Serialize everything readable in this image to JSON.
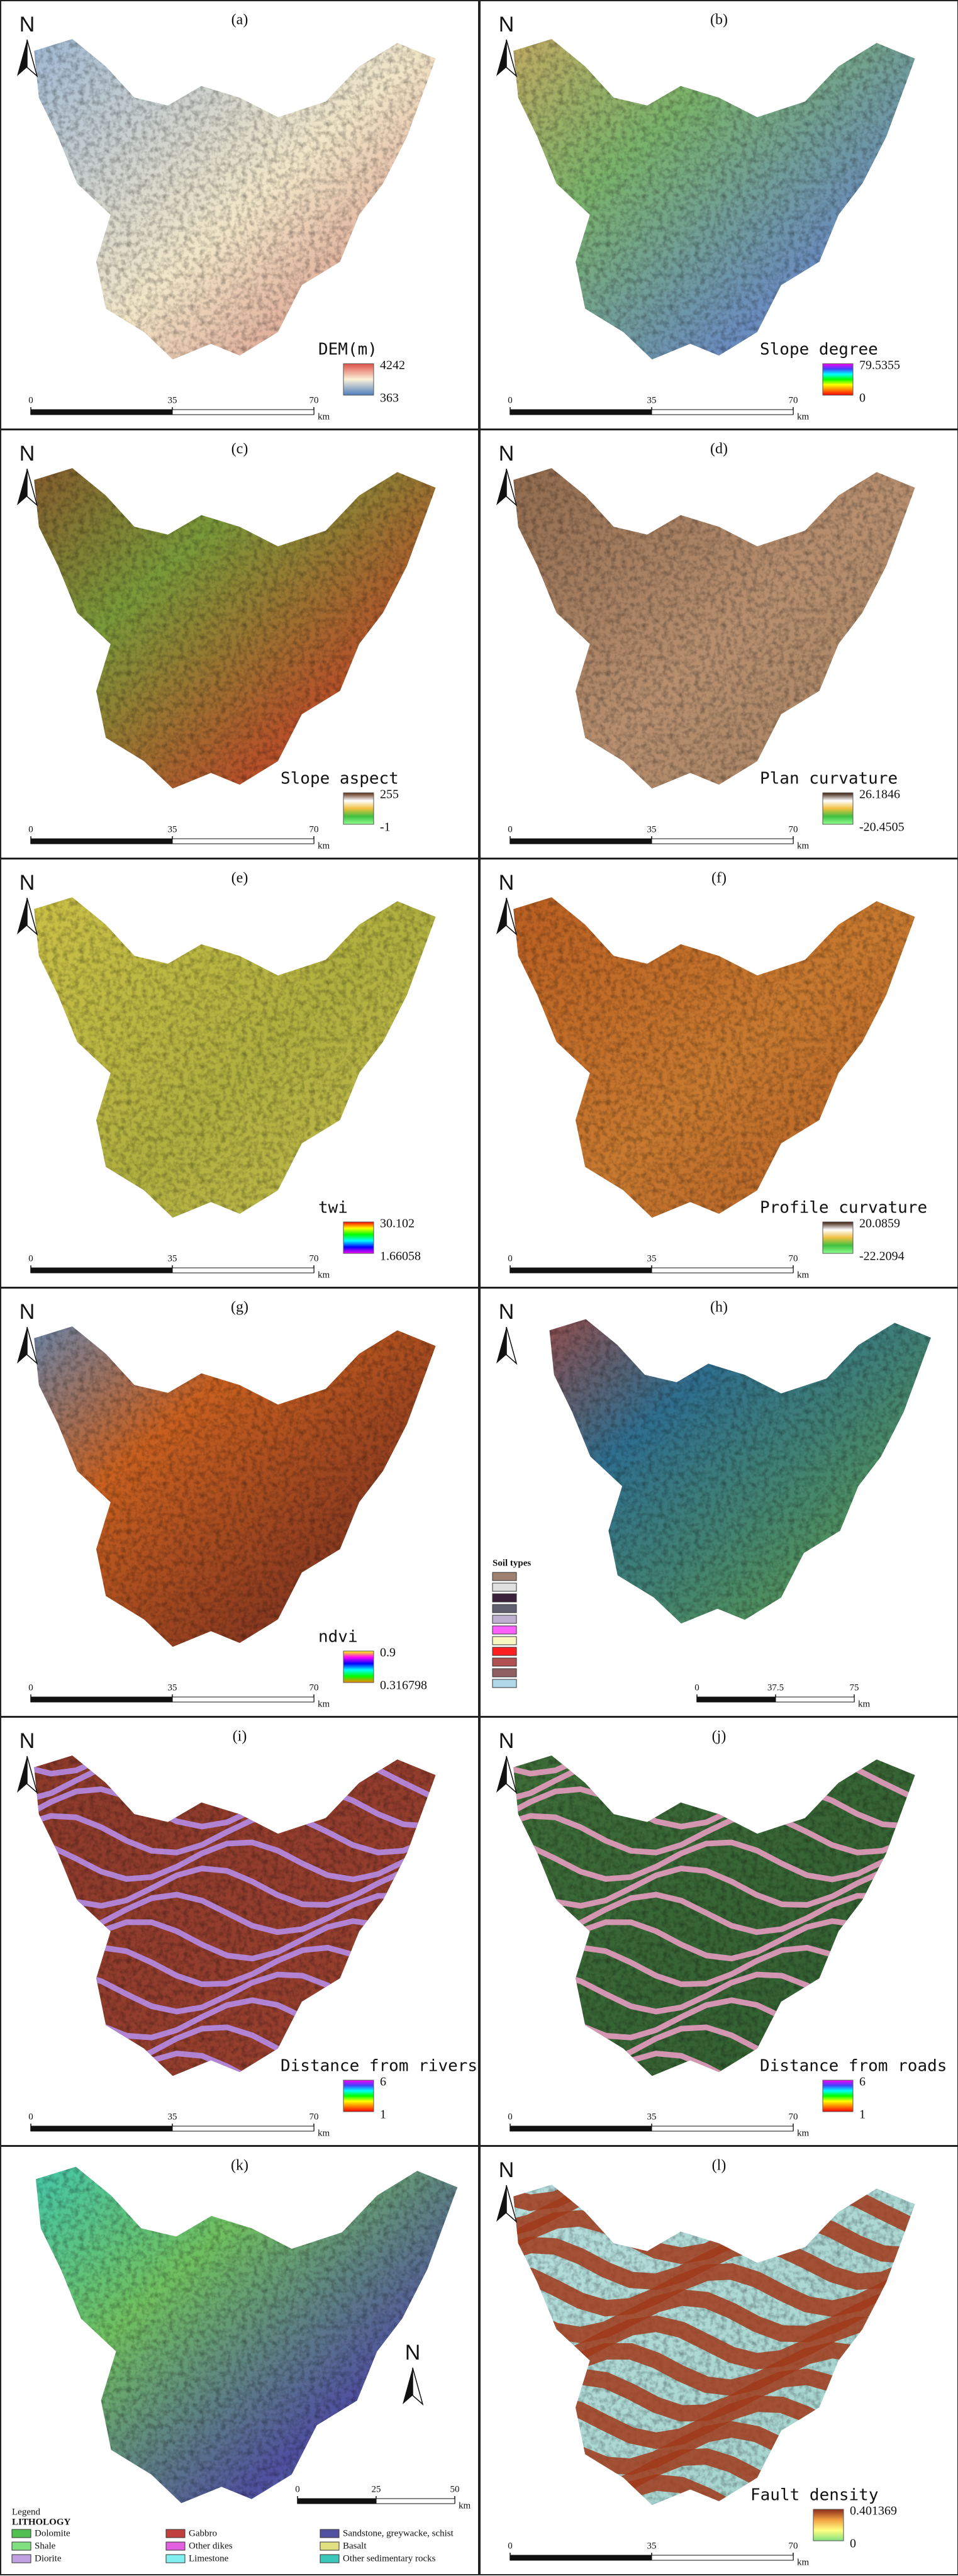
{
  "north": "N",
  "scale_unit": "km",
  "panels": [
    {
      "label": "(a)",
      "legend_title": "DEM(m)",
      "max": 4242,
      "min": 363,
      "colors": [
        "#e0524a",
        "#fbf1d8",
        "#4f7fc0"
      ],
      "map_colors": [
        "#8fb0d6",
        "#f2e6c8",
        "#c0504d"
      ],
      "scale": [
        0,
        35,
        70
      ]
    },
    {
      "label": "(b)",
      "legend_title": "Slope degree",
      "max": 79.5355,
      "min": 0,
      "colors": [
        "#ff00ff",
        "#4040ff",
        "#00ffff",
        "#00ff00",
        "#ffff00",
        "#ff8000",
        "#ff0000"
      ],
      "map_colors": [
        "#d8a860",
        "#7ab36b",
        "#6a8cc0",
        "#b8c860"
      ],
      "scale": [
        0,
        35,
        70
      ]
    },
    {
      "label": "(c)",
      "legend_title": "Slope aspect",
      "max": 255,
      "min": -1,
      "colors": [
        "#5a2a10",
        "#ffffff",
        "#f0c040",
        "#40c040",
        "#90ff90"
      ],
      "map_colors": [
        "#8a4a2a",
        "#7a9a3a",
        "#b8502a",
        "#6a8a30"
      ],
      "scale": [
        0,
        35,
        70
      ]
    },
    {
      "label": "(d)",
      "legend_title": "Plan curvature",
      "max": 26.1846,
      "min": -20.4505,
      "colors": [
        "#3a1a0a",
        "#ffffff",
        "#f0c040",
        "#40c040",
        "#90ff90"
      ],
      "map_colors": [
        "#8a6448",
        "#b89070",
        "#9a7858"
      ],
      "scale": [
        0,
        35,
        70
      ]
    },
    {
      "label": "(e)",
      "legend_title": "twi",
      "max": 30.102,
      "min": 1.66058,
      "colors": [
        "#ff0000",
        "#ffff00",
        "#00ff00",
        "#00ffff",
        "#0000ff",
        "#ff00ff"
      ],
      "map_colors": [
        "#d0c448",
        "#b0b040",
        "#c8c050"
      ],
      "scale": [
        0,
        35,
        70
      ]
    },
    {
      "label": "(f)",
      "legend_title": "Profile curvature",
      "max": 20.0859,
      "min": -22.2094,
      "colors": [
        "#3a1a0a",
        "#ffffff",
        "#f0c040",
        "#40c040",
        "#90ff90"
      ],
      "map_colors": [
        "#b85a20",
        "#c87a30",
        "#a85020"
      ],
      "scale": [
        0,
        35,
        70
      ]
    },
    {
      "label": "(g)",
      "legend_title": "ndvi",
      "max": 0.9,
      "min": 0.316798,
      "colors": [
        "#ffff00",
        "#ff00ff",
        "#0000ff",
        "#00ffff",
        "#00ff00",
        "#ff8000"
      ],
      "map_colors": [
        "#5090d0",
        "#c86020",
        "#8a3a20",
        "#e0a040"
      ],
      "scale": [
        0,
        35,
        70
      ]
    },
    {
      "label": "(h)",
      "legend_title": "Soil types",
      "swatches": [
        "#a08070",
        "#e0e0e0",
        "#3a203a",
        "#606070",
        "#c0b0d0",
        "#ff60ff",
        "#f8f8c0",
        "#ff2020",
        "#b05050",
        "#906060",
        "#b0d8e8"
      ],
      "map_colors": [
        "#c04030",
        "#2f6f8f",
        "#4f8f5f",
        "#b8d040"
      ],
      "scale": [
        0,
        37.5,
        75
      ]
    },
    {
      "label": "(i)",
      "legend_title": "Distance from rivers",
      "max": 6,
      "min": 1,
      "colors": [
        "#ff00ff",
        "#4040ff",
        "#00ffff",
        "#00ff00",
        "#ffff00",
        "#ff8000",
        "#ff0000"
      ],
      "map_colors": [
        "#8b3a2a",
        "#9a4030"
      ],
      "line_color": "#b890f0",
      "scale": [
        0,
        35,
        70
      ]
    },
    {
      "label": "(j)",
      "legend_title": "Distance from roads",
      "max": 6,
      "min": 1,
      "colors": [
        "#ff00ff",
        "#4040ff",
        "#00ffff",
        "#00ff00",
        "#ffff00",
        "#ff8000",
        "#ff0000"
      ],
      "map_colors": [
        "#3f6f3a",
        "#2f5a2f"
      ],
      "line_color": "#f0a0c8",
      "scale": [
        0,
        35,
        70
      ]
    },
    {
      "label": "(k)",
      "legend_title": "Legend",
      "legend_subtitle": "LITHOLOGY",
      "items": [
        {
          "name": "Dolomite",
          "color": "#50c050"
        },
        {
          "name": "Gabbro",
          "color": "#c04040"
        },
        {
          "name": "Sandstone, greywacke, schist",
          "color": "#5050a0"
        },
        {
          "name": "Shale",
          "color": "#80e080"
        },
        {
          "name": "Other dikes",
          "color": "#e060e0"
        },
        {
          "name": "Basalt",
          "color": "#e0e080"
        },
        {
          "name": "Diorite",
          "color": "#c0a0e0"
        },
        {
          "name": "Limestone",
          "color": "#80f0f0"
        },
        {
          "name": "Other sedimentary rocks",
          "color": "#3cc8b8"
        }
      ],
      "map_colors": [
        "#3cc8b8",
        "#70c060",
        "#5050a0",
        "#80f0f0"
      ],
      "scale": [
        0,
        25,
        50
      ]
    },
    {
      "label": "(l)",
      "legend_title": "Fault density",
      "max": 0.401369,
      "min": 0,
      "colors": [
        "#8b2a1a",
        "#f0a040",
        "#ffff80",
        "#80e080"
      ],
      "map_colors": [
        "#b8e0e0",
        "#a0d0c8"
      ],
      "line_color": "#a03a1a",
      "scale": [
        0,
        35,
        70
      ]
    }
  ]
}
